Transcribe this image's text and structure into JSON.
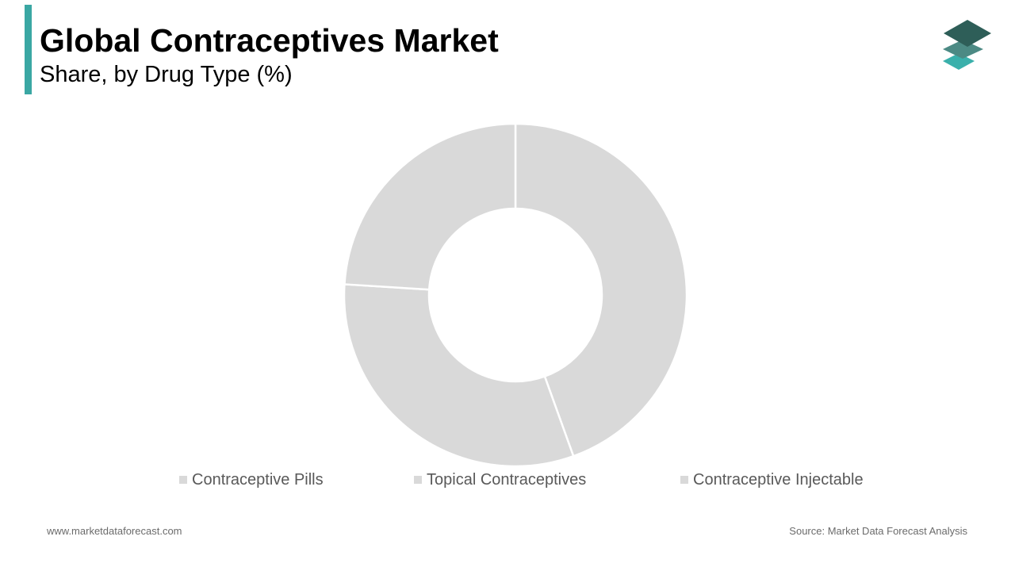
{
  "header": {
    "title": "Global Contraceptives Market",
    "subtitle": "Share, by Drug Type (%)"
  },
  "footer": {
    "website": "www.marketdataforecast.com",
    "source": "Source: Market Data Forecast Analysis"
  },
  "colors": {
    "accent": "#3aa7a3",
    "slice": "#d9d9d9",
    "separator": "#ffffff",
    "logo_top": "#2e5e58",
    "logo_mid": "#4c8a84",
    "logo_bottom": "#3ab0ab"
  },
  "icons": {
    "logo": "stacked-layers-logo-icon"
  },
  "chart_data": {
    "type": "pie",
    "donut": true,
    "categories": [
      "Contraceptive Pills",
      "Topical Contraceptives",
      "Contraceptive Injectable"
    ],
    "values": [
      44.5,
      31.5,
      24.0
    ],
    "legend_position": "bottom"
  }
}
